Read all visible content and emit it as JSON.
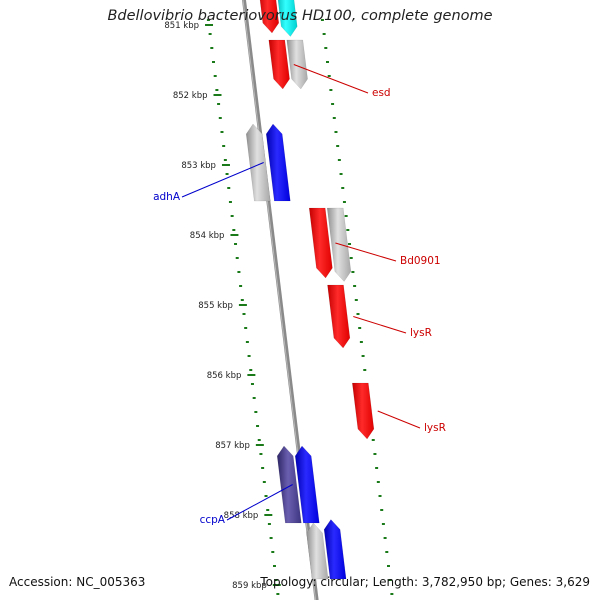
{
  "title": "Bdellovibrio bacteriovorus HD100, complete genome",
  "accession": "Accession: NC_005363",
  "summary": "Topology: circular; Length: 3,782,950 bp; Genes: 3,629",
  "colors": {
    "forward": "#ff0000",
    "reverse": "#0000ff",
    "other": "#00e5e5",
    "unknown": "#b0b0b0",
    "dark_gene": "#4a3f8a",
    "tick": "#1a7a1a",
    "backbone": "#808080"
  },
  "ticks": [
    {
      "kbp": 851,
      "label": "851 kbp"
    },
    {
      "kbp": 852,
      "label": "852 kbp"
    },
    {
      "kbp": 853,
      "label": "853 kbp"
    },
    {
      "kbp": 854,
      "label": "854 kbp"
    },
    {
      "kbp": 855,
      "label": "855 kbp"
    },
    {
      "kbp": 856,
      "label": "856 kbp"
    },
    {
      "kbp": 857,
      "label": "857 kbp"
    },
    {
      "kbp": 858,
      "label": "858 kbp"
    },
    {
      "kbp": 859,
      "label": "859 kbp"
    }
  ],
  "genes": [
    {
      "id": "g1",
      "strand": "+",
      "color": "red",
      "start_kbp": 850.8,
      "end_kbp": 851.5
    },
    {
      "id": "g2",
      "strand": "+",
      "color": "cyan",
      "start_kbp": 850.8,
      "end_kbp": 851.55
    },
    {
      "id": "g3",
      "strand": "+",
      "color": "gray",
      "start_kbp": 851.6,
      "end_kbp": 852.3
    },
    {
      "id": "esd",
      "strand": "+",
      "color": "red",
      "start_kbp": 851.6,
      "end_kbp": 852.3,
      "label": "esd"
    },
    {
      "id": "g5",
      "strand": "-",
      "color": "gray",
      "start_kbp": 852.8,
      "end_kbp": 853.9
    },
    {
      "id": "adhA",
      "strand": "-",
      "color": "blue",
      "start_kbp": 852.8,
      "end_kbp": 853.9,
      "label": "adhA"
    },
    {
      "id": "Bd0901",
      "strand": "+",
      "color": "red",
      "start_kbp": 854.0,
      "end_kbp": 855.0,
      "label": "Bd0901"
    },
    {
      "id": "g8",
      "strand": "+",
      "color": "gray",
      "start_kbp": 854.0,
      "end_kbp": 855.05
    },
    {
      "id": "lysR1",
      "strand": "+",
      "color": "red",
      "start_kbp": 855.1,
      "end_kbp": 856.0,
      "label": "lysR"
    },
    {
      "id": "lysR2",
      "strand": "+",
      "color": "red",
      "start_kbp": 856.5,
      "end_kbp": 857.3,
      "label": "lysR"
    },
    {
      "id": "g11",
      "strand": "-",
      "color": "dark",
      "start_kbp": 857.4,
      "end_kbp": 858.5
    },
    {
      "id": "ccpA",
      "strand": "-",
      "color": "blue",
      "start_kbp": 857.4,
      "end_kbp": 858.5,
      "label": "ccpA"
    },
    {
      "id": "g13",
      "strand": "-",
      "color": "gray",
      "start_kbp": 858.5,
      "end_kbp": 859.3
    },
    {
      "id": "g14",
      "strand": "-",
      "color": "blue",
      "start_kbp": 858.45,
      "end_kbp": 859.3
    }
  ]
}
